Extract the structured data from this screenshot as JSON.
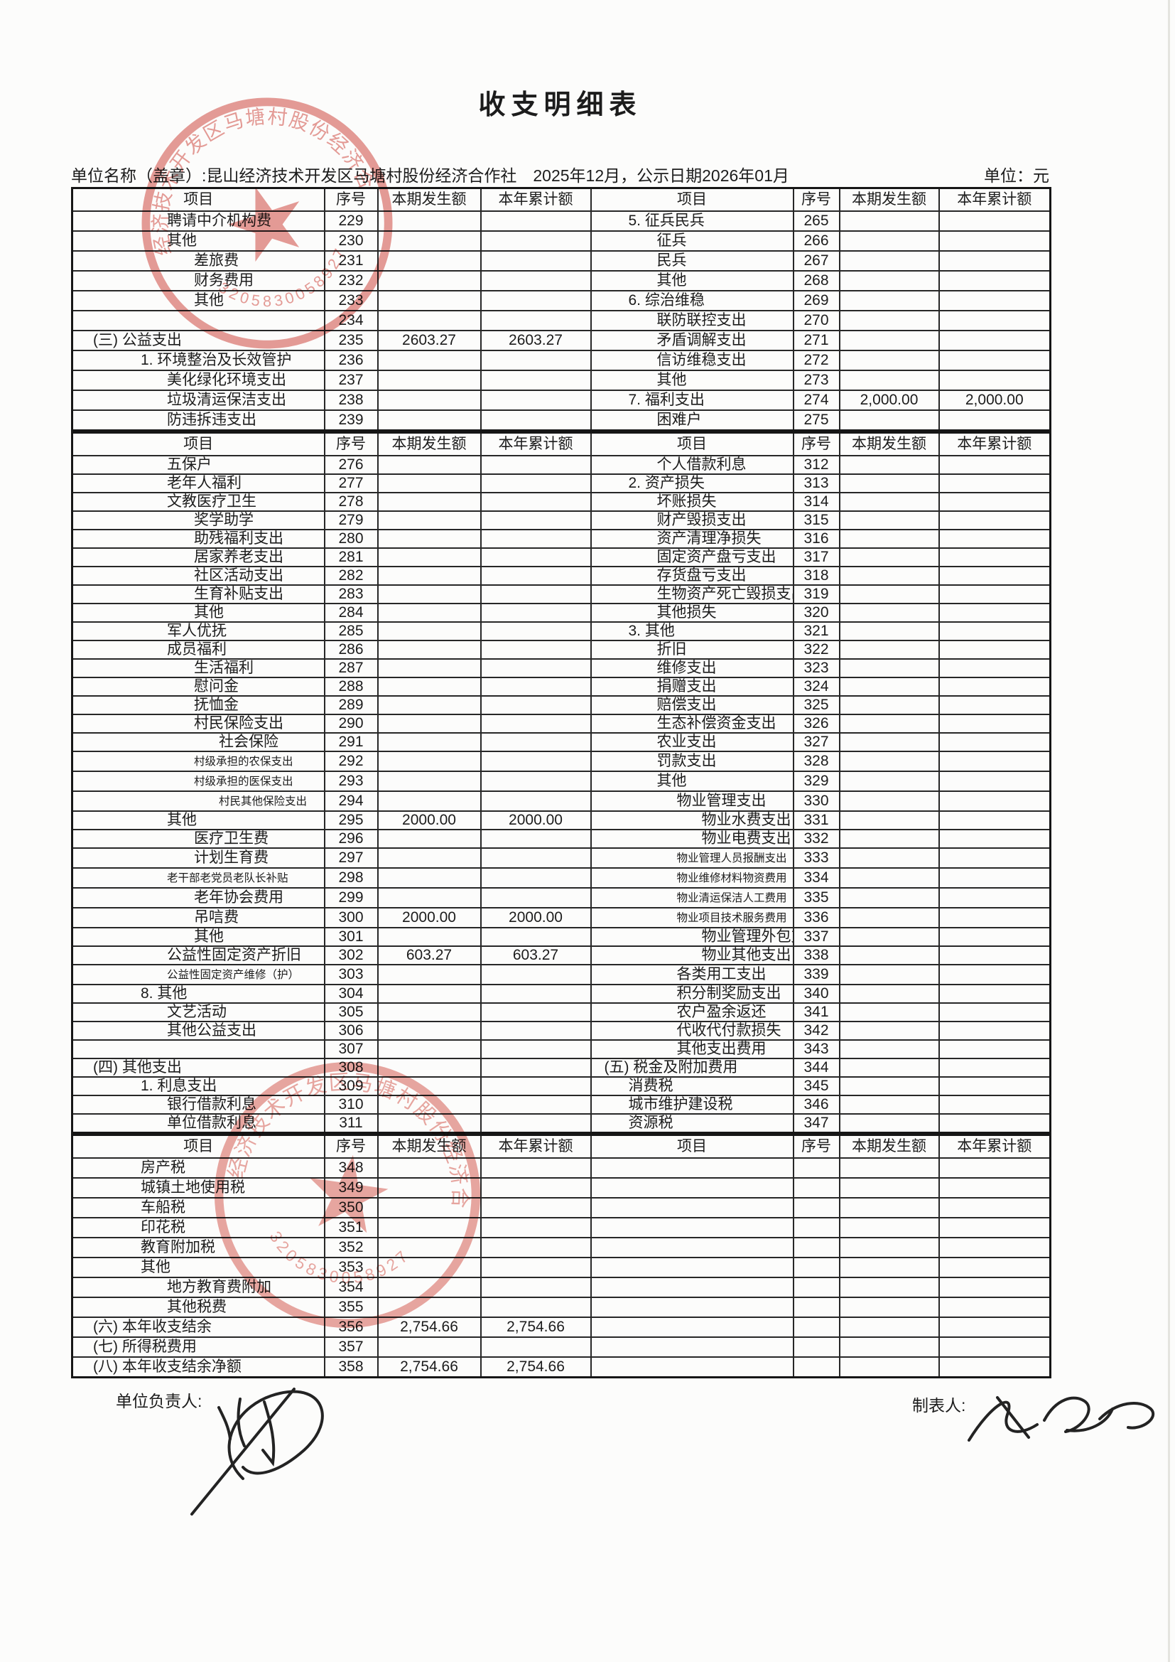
{
  "title": "收支明细表",
  "meta": {
    "org_line": "单位名称（盖章）:昆山经济技术开发区马塘村股份经济合作社　2025年12月，公示日期2026年01月",
    "unit_label": "单位：元"
  },
  "table_headers": {
    "item": "项目",
    "seq": "序号",
    "current": "本期发生额",
    "cumulative": "本年累计额"
  },
  "sections": [
    {
      "left": [
        {
          "label": "聘请中介机构费",
          "seq": "229",
          "cur": "",
          "cum": "",
          "ind": 2
        },
        {
          "label": "其他",
          "seq": "230",
          "cur": "",
          "cum": "",
          "ind": 2
        },
        {
          "label": "差旅费",
          "seq": "231",
          "cur": "",
          "cum": "",
          "ind": 3
        },
        {
          "label": "财务费用",
          "seq": "232",
          "cur": "",
          "cum": "",
          "ind": 3
        },
        {
          "label": "其他",
          "seq": "233",
          "cur": "",
          "cum": "",
          "ind": 3
        },
        {
          "label": "",
          "seq": "234",
          "cur": "",
          "cum": "",
          "ind": 0
        },
        {
          "label": "(三) 公益支出",
          "seq": "235",
          "cur": "2603.27",
          "cum": "2603.27",
          "ind": 0
        },
        {
          "label": "1. 环境整治及长效管护",
          "seq": "236",
          "cur": "",
          "cum": "",
          "ind": 1
        },
        {
          "label": "美化绿化环境支出",
          "seq": "237",
          "cur": "",
          "cum": "",
          "ind": 2
        },
        {
          "label": "垃圾清运保洁支出",
          "seq": "238",
          "cur": "",
          "cum": "",
          "ind": 2
        },
        {
          "label": "防违拆违支出",
          "seq": "239",
          "cur": "",
          "cum": "",
          "ind": 2
        }
      ],
      "right": [
        {
          "label": "5. 征兵民兵",
          "seq": "265",
          "cur": "",
          "cum": "",
          "ind": 1
        },
        {
          "label": "征兵",
          "seq": "266",
          "cur": "",
          "cum": "",
          "ind": 2
        },
        {
          "label": "民兵",
          "seq": "267",
          "cur": "",
          "cum": "",
          "ind": 2
        },
        {
          "label": "其他",
          "seq": "268",
          "cur": "",
          "cum": "",
          "ind": 2
        },
        {
          "label": "6. 综治维稳",
          "seq": "269",
          "cur": "",
          "cum": "",
          "ind": 1
        },
        {
          "label": "联防联控支出",
          "seq": "270",
          "cur": "",
          "cum": "",
          "ind": 2
        },
        {
          "label": "矛盾调解支出",
          "seq": "271",
          "cur": "",
          "cum": "",
          "ind": 2
        },
        {
          "label": "信访维稳支出",
          "seq": "272",
          "cur": "",
          "cum": "",
          "ind": 2
        },
        {
          "label": "其他",
          "seq": "273",
          "cur": "",
          "cum": "",
          "ind": 2
        },
        {
          "label": "7. 福利支出",
          "seq": "274",
          "cur": "2,000.00",
          "cum": "2,000.00",
          "ind": 1
        },
        {
          "label": "困难户",
          "seq": "275",
          "cur": "",
          "cum": "",
          "ind": 2
        }
      ]
    },
    {
      "left": [
        {
          "label": "五保户",
          "seq": "276",
          "cur": "",
          "cum": "",
          "ind": 2
        },
        {
          "label": "老年人福利",
          "seq": "277",
          "cur": "",
          "cum": "",
          "ind": 2
        },
        {
          "label": "文教医疗卫生",
          "seq": "278",
          "cur": "",
          "cum": "",
          "ind": 2
        },
        {
          "label": "奖学助学",
          "seq": "279",
          "cur": "",
          "cum": "",
          "ind": 3
        },
        {
          "label": "助残福利支出",
          "seq": "280",
          "cur": "",
          "cum": "",
          "ind": 3
        },
        {
          "label": "居家养老支出",
          "seq": "281",
          "cur": "",
          "cum": "",
          "ind": 3
        },
        {
          "label": "社区活动支出",
          "seq": "282",
          "cur": "",
          "cum": "",
          "ind": 3
        },
        {
          "label": "生育补贴支出",
          "seq": "283",
          "cur": "",
          "cum": "",
          "ind": 3
        },
        {
          "label": "其他",
          "seq": "284",
          "cur": "",
          "cum": "",
          "ind": 3
        },
        {
          "label": "军人优抚",
          "seq": "285",
          "cur": "",
          "cum": "",
          "ind": 2
        },
        {
          "label": "成员福利",
          "seq": "286",
          "cur": "",
          "cum": "",
          "ind": 2
        },
        {
          "label": "生活福利",
          "seq": "287",
          "cur": "",
          "cum": "",
          "ind": 3
        },
        {
          "label": "慰问金",
          "seq": "288",
          "cur": "",
          "cum": "",
          "ind": 3
        },
        {
          "label": "抚恤金",
          "seq": "289",
          "cur": "",
          "cum": "",
          "ind": 3
        },
        {
          "label": "村民保险支出",
          "seq": "290",
          "cur": "",
          "cum": "",
          "ind": 3
        },
        {
          "label": "社会保险",
          "seq": "291",
          "cur": "",
          "cum": "",
          "ind": 4
        },
        {
          "label": "村级承担的农保支出",
          "seq": "292",
          "cur": "",
          "cum": "",
          "ind": 3,
          "small": true
        },
        {
          "label": "村级承担的医保支出",
          "seq": "293",
          "cur": "",
          "cum": "",
          "ind": 3,
          "small": true
        },
        {
          "label": "村民其他保险支出",
          "seq": "294",
          "cur": "",
          "cum": "",
          "ind": 4,
          "small": true
        },
        {
          "label": "其他",
          "seq": "295",
          "cur": "2000.00",
          "cum": "2000.00",
          "ind": 2
        },
        {
          "label": "医疗卫生费",
          "seq": "296",
          "cur": "",
          "cum": "",
          "ind": 3
        },
        {
          "label": "计划生育费",
          "seq": "297",
          "cur": "",
          "cum": "",
          "ind": 3
        },
        {
          "label": "老干部老党员老队长补贴",
          "seq": "298",
          "cur": "",
          "cum": "",
          "ind": 2,
          "small": true
        },
        {
          "label": "老年协会费用",
          "seq": "299",
          "cur": "",
          "cum": "",
          "ind": 3
        },
        {
          "label": "吊唁费",
          "seq": "300",
          "cur": "2000.00",
          "cum": "2000.00",
          "ind": 3
        },
        {
          "label": "其他",
          "seq": "301",
          "cur": "",
          "cum": "",
          "ind": 3
        },
        {
          "label": "公益性固定资产折旧",
          "seq": "302",
          "cur": "603.27",
          "cum": "603.27",
          "ind": 2
        },
        {
          "label": "公益性固定资产维修（护）",
          "seq": "303",
          "cur": "",
          "cum": "",
          "ind": 2,
          "small": true
        },
        {
          "label": "8. 其他",
          "seq": "304",
          "cur": "",
          "cum": "",
          "ind": 1
        },
        {
          "label": "文艺活动",
          "seq": "305",
          "cur": "",
          "cum": "",
          "ind": 2
        },
        {
          "label": "其他公益支出",
          "seq": "306",
          "cur": "",
          "cum": "",
          "ind": 2
        },
        {
          "label": "",
          "seq": "307",
          "cur": "",
          "cum": "",
          "ind": 0
        },
        {
          "label": "(四) 其他支出",
          "seq": "308",
          "cur": "",
          "cum": "",
          "ind": 0
        },
        {
          "label": "1. 利息支出",
          "seq": "309",
          "cur": "",
          "cum": "",
          "ind": 1
        },
        {
          "label": "银行借款利息",
          "seq": "310",
          "cur": "",
          "cum": "",
          "ind": 2
        },
        {
          "label": "单位借款利息",
          "seq": "311",
          "cur": "",
          "cum": "",
          "ind": 2
        }
      ],
      "right": [
        {
          "label": "个人借款利息",
          "seq": "312",
          "cur": "",
          "cum": "",
          "ind": 2
        },
        {
          "label": "2. 资产损失",
          "seq": "313",
          "cur": "",
          "cum": "",
          "ind": 1
        },
        {
          "label": "坏账损失",
          "seq": "314",
          "cur": "",
          "cum": "",
          "ind": 2
        },
        {
          "label": "财产毁损支出",
          "seq": "315",
          "cur": "",
          "cum": "",
          "ind": 2
        },
        {
          "label": "资产清理净损失",
          "seq": "316",
          "cur": "",
          "cum": "",
          "ind": 2
        },
        {
          "label": "固定资产盘亏支出",
          "seq": "317",
          "cur": "",
          "cum": "",
          "ind": 2
        },
        {
          "label": "存货盘亏支出",
          "seq": "318",
          "cur": "",
          "cum": "",
          "ind": 2
        },
        {
          "label": "生物资产死亡毁损支出",
          "seq": "319",
          "cur": "",
          "cum": "",
          "ind": 2
        },
        {
          "label": "其他损失",
          "seq": "320",
          "cur": "",
          "cum": "",
          "ind": 2
        },
        {
          "label": "3. 其他",
          "seq": "321",
          "cur": "",
          "cum": "",
          "ind": 1
        },
        {
          "label": "折旧",
          "seq": "322",
          "cur": "",
          "cum": "",
          "ind": 2
        },
        {
          "label": "维修支出",
          "seq": "323",
          "cur": "",
          "cum": "",
          "ind": 2
        },
        {
          "label": "捐赠支出",
          "seq": "324",
          "cur": "",
          "cum": "",
          "ind": 2
        },
        {
          "label": "赔偿支出",
          "seq": "325",
          "cur": "",
          "cum": "",
          "ind": 2
        },
        {
          "label": "生态补偿资金支出",
          "seq": "326",
          "cur": "",
          "cum": "",
          "ind": 2
        },
        {
          "label": "农业支出",
          "seq": "327",
          "cur": "",
          "cum": "",
          "ind": 2
        },
        {
          "label": "罚款支出",
          "seq": "328",
          "cur": "",
          "cum": "",
          "ind": 2
        },
        {
          "label": "其他",
          "seq": "329",
          "cur": "",
          "cum": "",
          "ind": 2
        },
        {
          "label": "物业管理支出",
          "seq": "330",
          "cur": "",
          "cum": "",
          "ind": 3
        },
        {
          "label": "物业水费支出",
          "seq": "331",
          "cur": "",
          "cum": "",
          "ind": 4
        },
        {
          "label": "物业电费支出",
          "seq": "332",
          "cur": "",
          "cum": "",
          "ind": 4
        },
        {
          "label": "物业管理人员报酬支出",
          "seq": "333",
          "cur": "",
          "cum": "",
          "ind": 3,
          "small": true
        },
        {
          "label": "物业维修材料物资费用",
          "seq": "334",
          "cur": "",
          "cum": "",
          "ind": 3,
          "small": true
        },
        {
          "label": "物业清运保洁人工费用",
          "seq": "335",
          "cur": "",
          "cum": "",
          "ind": 3,
          "small": true
        },
        {
          "label": "物业项目技术服务费用",
          "seq": "336",
          "cur": "",
          "cum": "",
          "ind": 3,
          "small": true
        },
        {
          "label": "物业管理外包支出",
          "seq": "337",
          "cur": "",
          "cum": "",
          "ind": 4
        },
        {
          "label": "物业其他支出",
          "seq": "338",
          "cur": "",
          "cum": "",
          "ind": 4
        },
        {
          "label": "各类用工支出",
          "seq": "339",
          "cur": "",
          "cum": "",
          "ind": 3
        },
        {
          "label": "积分制奖励支出",
          "seq": "340",
          "cur": "",
          "cum": "",
          "ind": 3
        },
        {
          "label": "农户盈余返还",
          "seq": "341",
          "cur": "",
          "cum": "",
          "ind": 3
        },
        {
          "label": "代收代付款损失",
          "seq": "342",
          "cur": "",
          "cum": "",
          "ind": 3
        },
        {
          "label": "其他支出费用",
          "seq": "343",
          "cur": "",
          "cum": "",
          "ind": 3
        },
        {
          "label": "(五) 税金及附加费用",
          "seq": "344",
          "cur": "",
          "cum": "",
          "ind": 0
        },
        {
          "label": "消费税",
          "seq": "345",
          "cur": "",
          "cum": "",
          "ind": 1
        },
        {
          "label": "城市维护建设税",
          "seq": "346",
          "cur": "",
          "cum": "",
          "ind": 1
        },
        {
          "label": "资源税",
          "seq": "347",
          "cur": "",
          "cum": "",
          "ind": 1
        }
      ]
    },
    {
      "left": [
        {
          "label": "房产税",
          "seq": "348",
          "cur": "",
          "cum": "",
          "ind": 1
        },
        {
          "label": "城镇土地使用税",
          "seq": "349",
          "cur": "",
          "cum": "",
          "ind": 1
        },
        {
          "label": "车船税",
          "seq": "350",
          "cur": "",
          "cum": "",
          "ind": 1
        },
        {
          "label": "印花税",
          "seq": "351",
          "cur": "",
          "cum": "",
          "ind": 1
        },
        {
          "label": "教育附加税",
          "seq": "352",
          "cur": "",
          "cum": "",
          "ind": 1
        },
        {
          "label": "其他",
          "seq": "353",
          "cur": "",
          "cum": "",
          "ind": 1
        },
        {
          "label": "地方教育费附加",
          "seq": "354",
          "cur": "",
          "cum": "",
          "ind": 2
        },
        {
          "label": "其他税费",
          "seq": "355",
          "cur": "",
          "cum": "",
          "ind": 2
        },
        {
          "label": "(六) 本年收支结余",
          "seq": "356",
          "cur": "2,754.66",
          "cum": "2,754.66",
          "ind": 0
        },
        {
          "label": "(七) 所得税费用",
          "seq": "357",
          "cur": "",
          "cum": "",
          "ind": 0
        },
        {
          "label": "(八) 本年收支结余净额",
          "seq": "358",
          "cur": "2,754.66",
          "cum": "2,754.66",
          "ind": 0
        }
      ],
      "right": [
        {
          "label": "",
          "seq": "",
          "cur": "",
          "cum": "",
          "ind": 0
        },
        {
          "label": "",
          "seq": "",
          "cur": "",
          "cum": "",
          "ind": 0
        },
        {
          "label": "",
          "seq": "",
          "cur": "",
          "cum": "",
          "ind": 0
        },
        {
          "label": "",
          "seq": "",
          "cur": "",
          "cum": "",
          "ind": 0
        },
        {
          "label": "",
          "seq": "",
          "cur": "",
          "cum": "",
          "ind": 0
        },
        {
          "label": "",
          "seq": "",
          "cur": "",
          "cum": "",
          "ind": 0
        },
        {
          "label": "",
          "seq": "",
          "cur": "",
          "cum": "",
          "ind": 0
        },
        {
          "label": "",
          "seq": "",
          "cur": "",
          "cum": "",
          "ind": 0
        },
        {
          "label": "",
          "seq": "",
          "cur": "",
          "cum": "",
          "ind": 0
        },
        {
          "label": "",
          "seq": "",
          "cur": "",
          "cum": "",
          "ind": 0
        },
        {
          "label": "",
          "seq": "",
          "cur": "",
          "cum": "",
          "ind": 0
        }
      ]
    }
  ],
  "footer": {
    "left_label": "单位负责人:",
    "right_label": "制表人:"
  },
  "stamps": {
    "arc_text": "昆山经济技术开发区马塘村股份经济合作社",
    "serial": "3205830058927"
  }
}
